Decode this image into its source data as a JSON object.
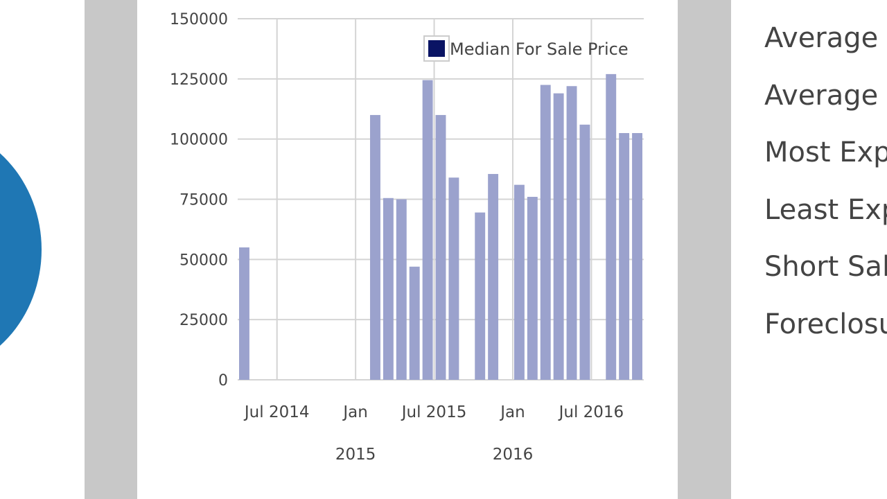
{
  "colors": {
    "bar_fill": "#9ba2cd",
    "legend_swatch": "#0a1464",
    "grid": "#d4d4d4",
    "gutter": "#c8c8c8",
    "pie_blue": "#1f77b4",
    "text": "#444444"
  },
  "legend": {
    "label": "Median For Sale Price"
  },
  "stats": {
    "items": [
      {
        "label": "Average D"
      },
      {
        "label": "Average L"
      },
      {
        "label": "Most Exp"
      },
      {
        "label": "Least Exp"
      },
      {
        "label": "Short Sal"
      },
      {
        "label": "Foreclosu"
      }
    ]
  },
  "chart_data": {
    "type": "bar",
    "x_ticks": [
      {
        "date": "2014-07-01",
        "line1": "Jul 2014",
        "line2": ""
      },
      {
        "date": "2015-01-01",
        "line1": "Jan",
        "line2": "2015"
      },
      {
        "date": "2015-07-01",
        "line1": "Jul 2015",
        "line2": ""
      },
      {
        "date": "2016-01-01",
        "line1": "Jan",
        "line2": "2016"
      },
      {
        "date": "2016-07-01",
        "line1": "Jul 2016",
        "line2": ""
      }
    ],
    "x_range": [
      "2014-04-01",
      "2016-10-01"
    ],
    "y_ticks": [
      0,
      25000,
      50000,
      75000,
      100000,
      125000,
      150000
    ],
    "ylim": [
      0,
      150000
    ],
    "series": [
      {
        "name": "Median For Sale Price",
        "points": [
          {
            "x": "2014-04",
            "y": 55000
          },
          {
            "x": "2015-02",
            "y": 110000
          },
          {
            "x": "2015-03",
            "y": 75500
          },
          {
            "x": "2015-04",
            "y": 75000
          },
          {
            "x": "2015-05",
            "y": 47000
          },
          {
            "x": "2015-06",
            "y": 124500
          },
          {
            "x": "2015-07",
            "y": 110000
          },
          {
            "x": "2015-08",
            "y": 84000
          },
          {
            "x": "2015-10",
            "y": 69500
          },
          {
            "x": "2015-11",
            "y": 85500
          },
          {
            "x": "2016-01",
            "y": 81000
          },
          {
            "x": "2016-02",
            "y": 76000
          },
          {
            "x": "2016-03",
            "y": 122500
          },
          {
            "x": "2016-04",
            "y": 119000
          },
          {
            "x": "2016-05",
            "y": 122000
          },
          {
            "x": "2016-06",
            "y": 106000
          },
          {
            "x": "2016-08",
            "y": 127000
          },
          {
            "x": "2016-09",
            "y": 102500
          },
          {
            "x": "2016-10",
            "y": 102500
          }
        ]
      }
    ]
  }
}
